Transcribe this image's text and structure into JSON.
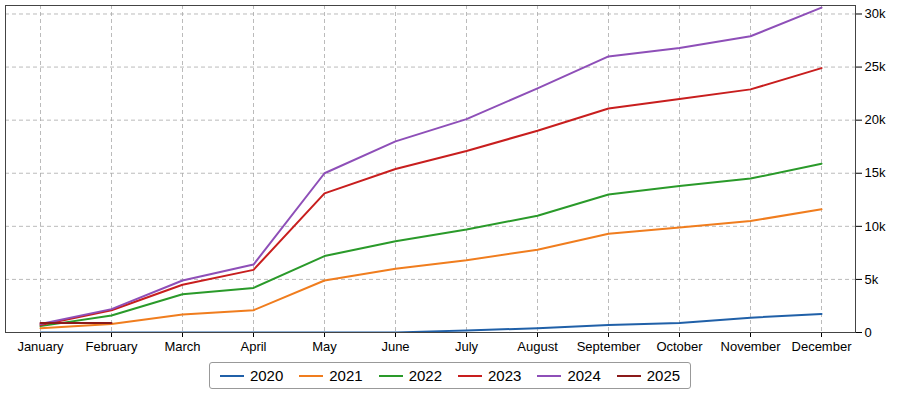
{
  "chart_data": {
    "type": "line",
    "categories": [
      "January",
      "February",
      "March",
      "April",
      "May",
      "June",
      "July",
      "August",
      "September",
      "October",
      "November",
      "December"
    ],
    "series": [
      {
        "name": "2020",
        "color": "#2060a8",
        "values": [
          0,
          0,
          0,
          0,
          0,
          0,
          200,
          400,
          700,
          900,
          1400,
          1750
        ]
      },
      {
        "name": "2021",
        "color": "#f07d1e",
        "values": [
          400,
          800,
          1700,
          2100,
          4900,
          6000,
          6800,
          7800,
          9300,
          9900,
          10500,
          11600
        ]
      },
      {
        "name": "2022",
        "color": "#2a9a2a",
        "values": [
          600,
          1600,
          3600,
          4200,
          7200,
          8600,
          9700,
          11000,
          13000,
          13800,
          14500,
          15900
        ]
      },
      {
        "name": "2023",
        "color": "#c81e1e",
        "values": [
          700,
          2100,
          4500,
          5900,
          13100,
          15400,
          17100,
          19000,
          21100,
          22000,
          22900,
          24900
        ]
      },
      {
        "name": "2024",
        "color": "#8e4fb8",
        "values": [
          800,
          2200,
          4900,
          6400,
          15000,
          18000,
          20100,
          23000,
          26000,
          26800,
          27900,
          30600
        ]
      },
      {
        "name": "2025",
        "color": "#8b1a1a",
        "values": [
          900,
          900,
          null,
          null,
          null,
          null,
          null,
          null,
          null,
          null,
          null,
          null
        ]
      }
    ],
    "ylim": [
      0,
      30800
    ],
    "yticks": [
      0,
      {
        "value": 5000,
        "label": "5k"
      },
      {
        "value": 10000,
        "label": "10k"
      },
      {
        "value": 15000,
        "label": "15k"
      },
      {
        "value": 20000,
        "label": "20k"
      },
      {
        "value": 25000,
        "label": "25k"
      },
      {
        "value": 30000,
        "label": "30k"
      }
    ],
    "grid": true,
    "legend": "bottom"
  }
}
